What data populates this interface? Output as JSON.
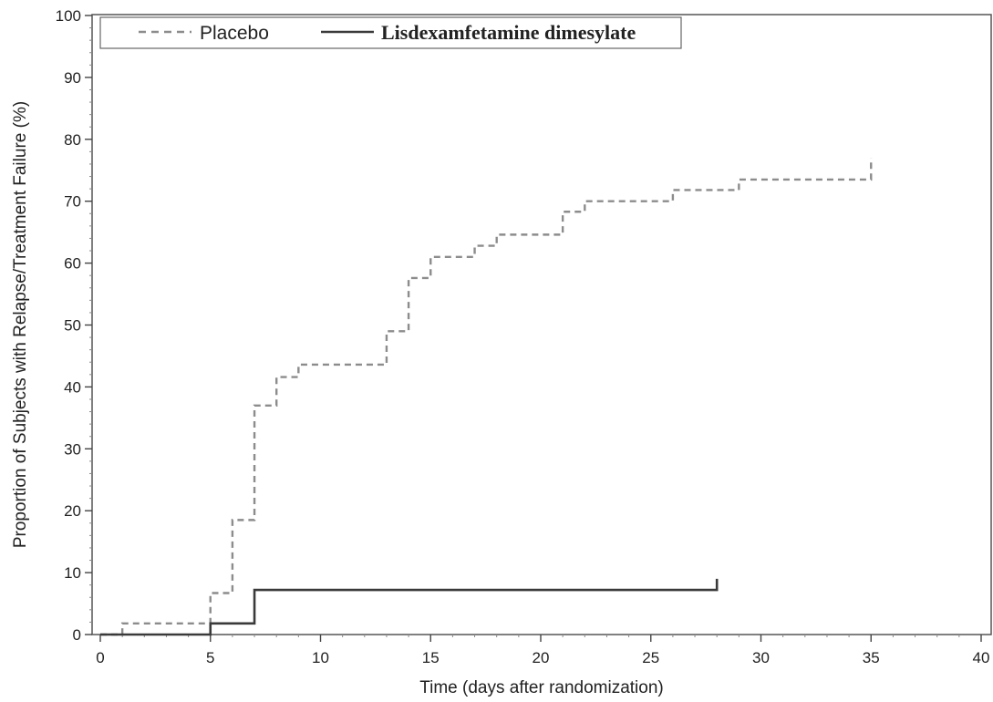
{
  "chart_data": {
    "type": "line",
    "step": true,
    "xlabel": "Time (days after randomization)",
    "ylabel": "Proportion of Subjects with Relapse/Treatment Failure (%)",
    "xlim": [
      0,
      40
    ],
    "ylim": [
      0,
      100
    ],
    "x_ticks": [
      0,
      5,
      10,
      15,
      20,
      25,
      30,
      35,
      40
    ],
    "y_ticks": [
      0,
      10,
      20,
      30,
      40,
      50,
      60,
      70,
      80,
      90,
      100
    ],
    "grid": false,
    "legend_position": "top-left",
    "series": [
      {
        "name": "Placebo",
        "line_style": "dashed",
        "color": "#8c8c8c",
        "x": [
          0,
          1,
          5,
          6,
          7,
          8,
          9,
          13,
          14,
          15,
          17,
          18,
          21,
          22,
          26,
          29,
          35,
          35
        ],
        "y": [
          0,
          1.8,
          6.7,
          18.5,
          37.0,
          41.6,
          43.6,
          49.0,
          57.6,
          61.0,
          62.8,
          64.6,
          68.3,
          70.0,
          71.8,
          73.5,
          73.5,
          77.0
        ]
      },
      {
        "name": "Lisdexamfetamine dimesylate",
        "line_style": "solid",
        "color": "#3a3a3a",
        "x": [
          0,
          5,
          7,
          28,
          28
        ],
        "y": [
          0,
          1.8,
          7.2,
          7.2,
          9.0
        ]
      }
    ]
  }
}
